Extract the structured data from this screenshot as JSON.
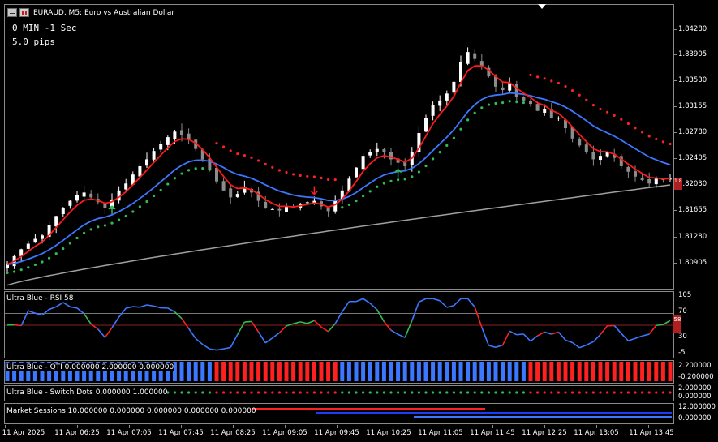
{
  "symbol": {
    "title": "EURAUD, M5:  Euro vs Australian Dollar"
  },
  "timer": {
    "text": "0 MIN -1 Sec"
  },
  "spread": {
    "text": "5.0 pips"
  },
  "price_axis": [
    "1.84280",
    "1.83905",
    "1.83530",
    "1.83155",
    "1.82780",
    "1.82405",
    "1.82030",
    "1.81655",
    "1.81280",
    "1.80905"
  ],
  "current_price": "1.82125",
  "panels": {
    "rsi": {
      "title": "Ultra Blue - RSI 58",
      "levels": [
        "105",
        "70",
        "30",
        "-5"
      ],
      "current": "58"
    },
    "qti": {
      "title": "Ultra Blue - QTI 0.000000 2.000000 0.000000",
      "levels": [
        "2.200000",
        "-0.200000"
      ]
    },
    "switch": {
      "title": "Ultra Blue - Switch Dots 0.000000 1.000000",
      "levels": [
        "2.000000",
        "0.000000"
      ]
    },
    "sessions": {
      "title": "Market Sessions 10.000000 0.000000 0.000000 0.000000 0.000000",
      "levels": [
        "12.000000",
        "0.000000"
      ]
    }
  },
  "time_axis": [
    "11 Apr 2025",
    "11 Apr 06:25",
    "11 Apr 07:05",
    "11 Apr 07:45",
    "11 Apr 08:25",
    "11 Apr 09:05",
    "11 Apr 09:45",
    "11 Apr 10:25",
    "11 Apr 11:05",
    "11 Apr 11:45",
    "11 Apr 12:25",
    "11 Apr 13:05",
    "11 Apr 13:45"
  ],
  "colors": {
    "up": "#ffffff",
    "down": "#8c8c8c",
    "fast_ma": "#ff1a1a",
    "mid_ma": "#3c78ff",
    "slow_ma": "#a0a0a0",
    "dots_up": "#2fbf4f",
    "dots_down": "#ff2020",
    "rsi": "#3c78ff"
  },
  "chart_data": {
    "type": "candlestick",
    "timeframe": "M5",
    "close": [
      1.8088,
      1.81,
      1.811,
      1.8118,
      1.8125,
      1.813,
      1.8145,
      1.8158,
      1.817,
      1.818,
      1.8188,
      1.8192,
      1.8185,
      1.8178,
      1.817,
      1.8182,
      1.8195,
      1.8205,
      1.8218,
      1.823,
      1.824,
      1.8252,
      1.8262,
      1.8272,
      1.828,
      1.8275,
      1.8268,
      1.8255,
      1.824,
      1.8225,
      1.8208,
      1.8195,
      1.8185,
      1.819,
      1.82,
      1.8192,
      1.818,
      1.817,
      1.8168,
      1.8166,
      1.8172,
      1.817,
      1.8175,
      1.8178,
      1.818,
      1.8172,
      1.8165,
      1.818,
      1.8195,
      1.8212,
      1.8228,
      1.8245,
      1.825,
      1.8255,
      1.825,
      1.824,
      1.8235,
      1.823,
      1.825,
      1.8278,
      1.83,
      1.8318,
      1.8325,
      1.8335,
      1.8352,
      1.838,
      1.8395,
      1.8385,
      1.8375,
      1.836,
      1.8345,
      1.834,
      1.835,
      1.833,
      1.8325,
      1.832,
      1.831,
      1.8312,
      1.83,
      1.83,
      1.8285,
      1.827,
      1.826,
      1.825,
      1.824,
      1.8245,
      1.825,
      1.8242,
      1.823,
      1.8222,
      1.8215,
      1.821,
      1.8205,
      1.8212,
      1.821,
      1.8212
    ]
  }
}
